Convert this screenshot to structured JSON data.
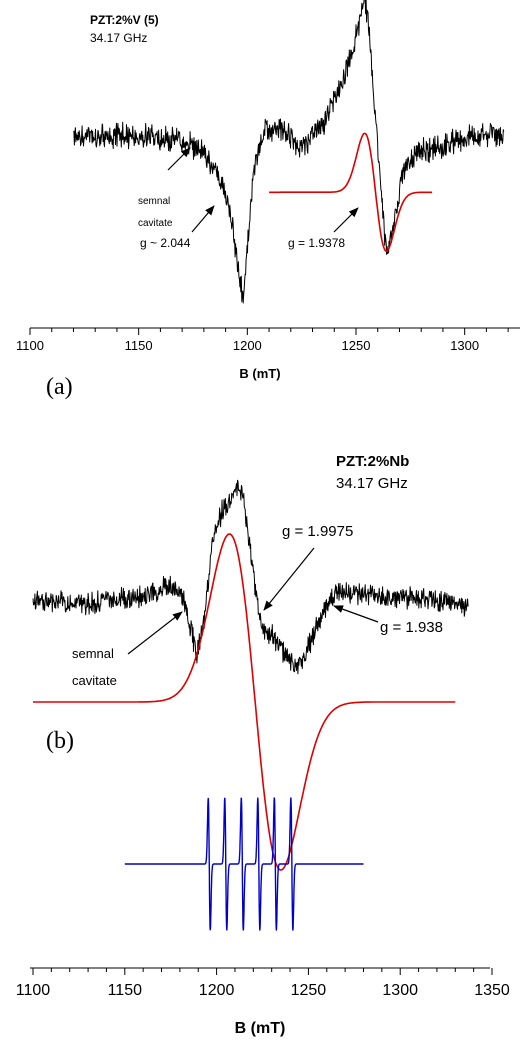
{
  "chart_data": [
    {
      "type": "line",
      "panel_label": "(a)",
      "title": "PZT:2%V (5)",
      "subtitle": "34.17 GHz",
      "xlabel": "B (mT)",
      "ylabel": "",
      "xlim": [
        1100,
        1325
      ],
      "xticks": [
        1100,
        1150,
        1200,
        1250,
        1300
      ],
      "grid": false,
      "series": [
        {
          "color": "#000000",
          "style": "noisy",
          "x": [
            1120,
            1150,
            1170,
            1180,
            1186,
            1190,
            1193,
            1196,
            1198,
            1200,
            1203,
            1208,
            1215,
            1225,
            1235,
            1242,
            1248,
            1252,
            1254,
            1256,
            1258,
            1261,
            1264,
            1268,
            1272,
            1280,
            1290,
            1300,
            1310,
            1318
          ],
          "y": [
            0.0,
            0.02,
            -0.02,
            -0.08,
            -0.22,
            -0.35,
            -0.55,
            -0.85,
            -1.05,
            -0.7,
            -0.2,
            0.05,
            0.06,
            -0.06,
            0.1,
            0.28,
            0.55,
            0.78,
            0.9,
            0.7,
            0.3,
            -0.25,
            -0.75,
            -0.5,
            -0.2,
            -0.08,
            -0.05,
            0.0,
            0.03,
            0.0
          ]
        },
        {
          "color": "#dd0000",
          "style": "derivative",
          "x_start": 1210,
          "x_end": 1285,
          "center": 1259,
          "width": 5,
          "amplitude": 0.38,
          "baseline": -0.35
        }
      ],
      "annotations": [
        {
          "text": "semnal",
          "text2": "cavitate"
        },
        {
          "text": "g ~ 2.044"
        },
        {
          "text": "g = 1.9378"
        }
      ]
    },
    {
      "type": "line",
      "panel_label": "(b)",
      "title": "PZT:2%Nb",
      "subtitle": "34.17 GHz",
      "xlabel": "B (mT)",
      "ylabel": "",
      "xlim": [
        1100,
        1350
      ],
      "xticks": [
        1100,
        1150,
        1200,
        1250,
        1300,
        1350
      ],
      "grid": false,
      "series": [
        {
          "color": "#000000",
          "style": "noisy",
          "x": [
            1100,
            1130,
            1160,
            1175,
            1182,
            1186,
            1189,
            1193,
            1198,
            1203,
            1208,
            1212,
            1215,
            1218,
            1222,
            1226,
            1230,
            1235,
            1240,
            1244,
            1248,
            1255,
            1265,
            1280,
            1300,
            1320,
            1337
          ],
          "y": [
            0.0,
            -0.03,
            0.03,
            0.12,
            0.0,
            -0.25,
            -0.45,
            -0.2,
            0.5,
            0.75,
            0.85,
            0.95,
            0.8,
            0.45,
            0.0,
            -0.3,
            -0.3,
            -0.42,
            -0.5,
            -0.58,
            -0.45,
            -0.2,
            0.08,
            0.05,
            0.02,
            0.0,
            -0.05
          ]
        },
        {
          "color": "#dd0000",
          "style": "derivative",
          "x_start": 1100,
          "x_end": 1330,
          "center": 1221,
          "width": 14,
          "amplitude": 1.4,
          "baseline": -0.85
        },
        {
          "color": "#0000cc",
          "style": "hyperfine",
          "x_start": 1150,
          "x_end": 1280,
          "lines": [
            1196,
            1205,
            1214,
            1223,
            1232,
            1241
          ],
          "amplitude": 0.55,
          "baseline": -2.2
        }
      ],
      "annotations": [
        {
          "text": "g = 1.9975"
        },
        {
          "text": "semnal",
          "text2": "cavitate"
        },
        {
          "text": "g = 1.938"
        }
      ]
    }
  ]
}
